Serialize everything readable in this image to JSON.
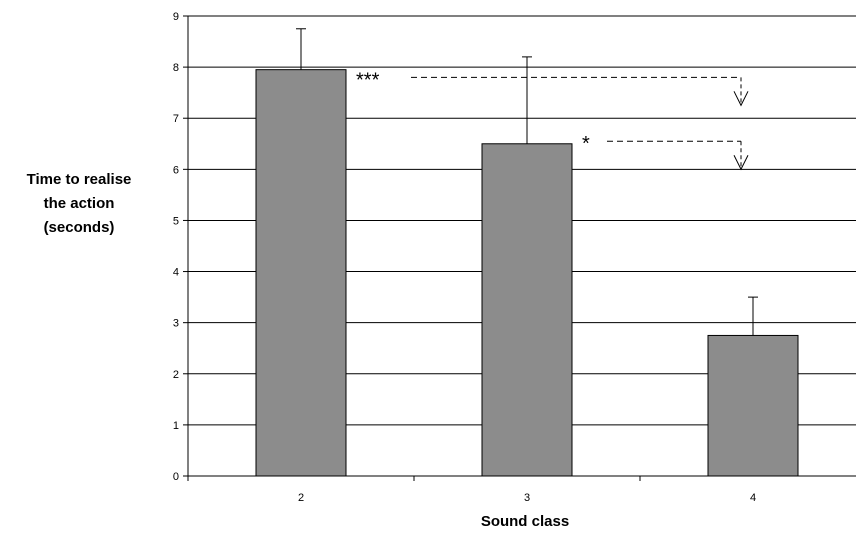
{
  "chart_data": {
    "type": "bar",
    "title": "",
    "xlabel": "Sound class",
    "ylabel_lines": [
      "Time to realise",
      "the action",
      "(seconds)"
    ],
    "categories": [
      "2",
      "3",
      "4"
    ],
    "values": [
      7.95,
      6.5,
      2.75
    ],
    "error_bars": [
      0.8,
      1.7,
      0.75
    ],
    "ylim": [
      0,
      9
    ],
    "yticks": [
      "0",
      "1",
      "2",
      "3",
      "4",
      "5",
      "6",
      "7",
      "8",
      "9"
    ],
    "grid": true,
    "legend": "none",
    "bar_color": "#8c8c8c",
    "annotations": [
      {
        "label": "***",
        "from_category": "2",
        "to_category": "4",
        "y": 7.8
      },
      {
        "label": "*",
        "from_category": "3",
        "to_category": "4",
        "y": 6.55
      }
    ]
  }
}
